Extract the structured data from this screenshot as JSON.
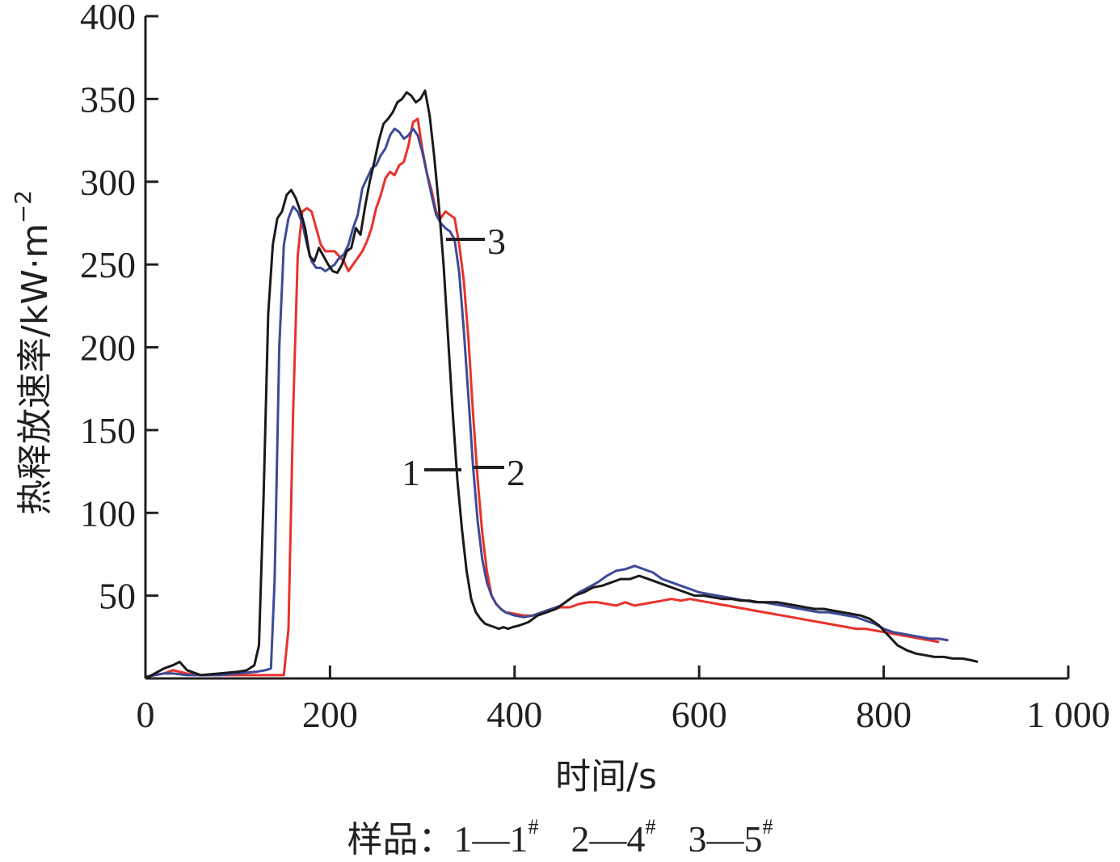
{
  "chart_data": {
    "type": "line",
    "title": "",
    "xlabel": "时间/s",
    "ylabel": "热释放速率/kW·m",
    "ylabel_sup": "−2",
    "xlim": [
      0,
      1000
    ],
    "ylim": [
      0,
      400
    ],
    "x_ticks": [
      0,
      200,
      400,
      600,
      800,
      1000
    ],
    "x_tick_labels": [
      "0",
      "200",
      "400",
      "600",
      "800",
      "1 000"
    ],
    "y_ticks": [
      50,
      100,
      150,
      200,
      250,
      300,
      350,
      400
    ],
    "y_tick_labels": [
      "50",
      "100",
      "150",
      "200",
      "250",
      "300",
      "350",
      "400"
    ],
    "grid": false,
    "series": [
      {
        "color": "#1a1a1a",
        "curve_label": "1",
        "x": [
          0,
          10,
          20,
          30,
          37,
          45,
          60,
          80,
          100,
          110,
          118,
          123,
          128,
          133,
          138,
          143,
          148,
          153,
          158,
          163,
          168,
          173,
          178,
          183,
          188,
          193,
          198,
          203,
          208,
          213,
          218,
          223,
          228,
          233,
          238,
          243,
          248,
          253,
          258,
          263,
          268,
          273,
          278,
          283,
          288,
          293,
          298,
          303,
          308,
          313,
          318,
          323,
          328,
          333,
          338,
          343,
          348,
          353,
          358,
          363,
          368,
          373,
          378,
          383,
          388,
          393,
          398,
          405,
          415,
          425,
          435,
          445,
          455,
          465,
          475,
          485,
          495,
          505,
          515,
          525,
          535,
          545,
          555,
          565,
          575,
          585,
          595,
          605,
          615,
          625,
          635,
          645,
          655,
          665,
          675,
          685,
          695,
          705,
          715,
          725,
          735,
          745,
          755,
          765,
          775,
          785,
          795,
          805,
          815,
          825,
          835,
          845,
          855,
          865,
          875,
          885,
          895,
          902
        ],
        "y": [
          0,
          3,
          6,
          8,
          10,
          5,
          2,
          3,
          4,
          5,
          8,
          20,
          110,
          220,
          262,
          278,
          282,
          292,
          295,
          290,
          282,
          272,
          255,
          252,
          260,
          255,
          250,
          246,
          245,
          250,
          258,
          260,
          272,
          268,
          285,
          300,
          312,
          325,
          335,
          338,
          342,
          348,
          350,
          354,
          352,
          348,
          350,
          355,
          340,
          315,
          285,
          250,
          205,
          160,
          120,
          90,
          65,
          48,
          40,
          36,
          33,
          32,
          31,
          30,
          31,
          30,
          31,
          32,
          34,
          38,
          40,
          42,
          46,
          50,
          52,
          55,
          56,
          58,
          60,
          60,
          62,
          60,
          58,
          56,
          54,
          52,
          50,
          50,
          49,
          48,
          48,
          47,
          47,
          46,
          46,
          46,
          45,
          44,
          43,
          42,
          42,
          41,
          40,
          39,
          38,
          36,
          32,
          26,
          20,
          17,
          15,
          14,
          13,
          13,
          12,
          12,
          11,
          10
        ]
      },
      {
        "color": "#e8322a",
        "curve_label": "2",
        "x": [
          0,
          10,
          20,
          30,
          45,
          60,
          80,
          100,
          120,
          140,
          150,
          155,
          160,
          165,
          170,
          175,
          180,
          185,
          190,
          195,
          200,
          205,
          210,
          215,
          220,
          225,
          230,
          235,
          240,
          245,
          250,
          255,
          260,
          265,
          270,
          275,
          280,
          285,
          290,
          295,
          300,
          305,
          310,
          315,
          320,
          325,
          330,
          335,
          340,
          345,
          350,
          355,
          360,
          365,
          370,
          375,
          380,
          385,
          390,
          400,
          410,
          420,
          430,
          440,
          450,
          460,
          470,
          480,
          490,
          500,
          510,
          520,
          530,
          540,
          550,
          560,
          570,
          580,
          590,
          600,
          610,
          620,
          630,
          640,
          650,
          660,
          670,
          680,
          690,
          700,
          710,
          720,
          730,
          740,
          750,
          760,
          770,
          780,
          790,
          800,
          810,
          820,
          830,
          840,
          850,
          860
        ],
        "y": [
          1,
          2,
          3,
          5,
          3,
          2,
          2,
          2,
          2,
          2,
          2,
          30,
          160,
          255,
          282,
          284,
          282,
          272,
          262,
          258,
          258,
          258,
          255,
          252,
          246,
          250,
          254,
          258,
          264,
          272,
          284,
          292,
          302,
          306,
          304,
          310,
          312,
          322,
          336,
          338,
          320,
          305,
          295,
          282,
          278,
          282,
          280,
          278,
          262,
          240,
          205,
          160,
          120,
          88,
          65,
          50,
          45,
          42,
          40,
          39,
          38,
          38,
          40,
          42,
          43,
          43,
          45,
          46,
          46,
          45,
          44,
          46,
          44,
          45,
          46,
          47,
          48,
          47,
          48,
          47,
          46,
          45,
          44,
          43,
          42,
          41,
          40,
          39,
          38,
          37,
          36,
          35,
          34,
          33,
          32,
          31,
          30,
          30,
          29,
          28,
          27,
          26,
          25,
          24,
          23,
          22
        ]
      },
      {
        "color": "#3d4a98",
        "curve_label": "3",
        "x": [
          0,
          10,
          20,
          30,
          45,
          60,
          80,
          100,
          120,
          130,
          136,
          140,
          145,
          150,
          155,
          160,
          165,
          170,
          175,
          180,
          185,
          190,
          195,
          200,
          205,
          210,
          215,
          220,
          225,
          230,
          235,
          240,
          245,
          250,
          255,
          260,
          265,
          270,
          275,
          280,
          285,
          290,
          295,
          300,
          305,
          310,
          315,
          320,
          325,
          330,
          335,
          340,
          345,
          350,
          355,
          360,
          365,
          370,
          375,
          380,
          385,
          390,
          400,
          410,
          420,
          430,
          440,
          450,
          460,
          470,
          480,
          490,
          500,
          510,
          520,
          530,
          540,
          550,
          560,
          570,
          580,
          590,
          600,
          610,
          620,
          630,
          640,
          650,
          660,
          670,
          680,
          690,
          700,
          710,
          720,
          730,
          740,
          750,
          760,
          770,
          780,
          790,
          800,
          810,
          820,
          830,
          840,
          850,
          860,
          870
        ],
        "y": [
          1,
          2,
          3,
          3,
          2,
          2,
          2,
          3,
          4,
          5,
          6,
          60,
          200,
          262,
          278,
          285,
          282,
          275,
          262,
          252,
          248,
          248,
          246,
          248,
          250,
          254,
          256,
          262,
          272,
          280,
          296,
          302,
          308,
          310,
          316,
          320,
          328,
          332,
          330,
          326,
          328,
          332,
          328,
          318,
          305,
          292,
          280,
          275,
          272,
          270,
          265,
          245,
          210,
          170,
          128,
          95,
          72,
          58,
          50,
          45,
          42,
          40,
          38,
          37,
          38,
          40,
          42,
          44,
          48,
          52,
          55,
          58,
          62,
          65,
          66,
          68,
          66,
          64,
          60,
          58,
          56,
          54,
          52,
          51,
          50,
          49,
          48,
          47,
          46,
          46,
          45,
          44,
          43,
          42,
          41,
          40,
          40,
          39,
          38,
          37,
          35,
          33,
          30,
          28,
          27,
          26,
          25,
          24,
          24,
          23
        ]
      }
    ],
    "curve_labels": [
      {
        "text": "1",
        "series": 0
      },
      {
        "text": "2",
        "series": 1
      },
      {
        "text": "3",
        "series": 2
      }
    ]
  },
  "caption": {
    "prefix": "样品：",
    "items": [
      {
        "num": "1",
        "dash": "—",
        "sample": "1",
        "mark": "#"
      },
      {
        "num": "2",
        "dash": "—",
        "sample": "4",
        "mark": "#"
      },
      {
        "num": "3",
        "dash": "—",
        "sample": "5",
        "mark": "#"
      }
    ]
  }
}
